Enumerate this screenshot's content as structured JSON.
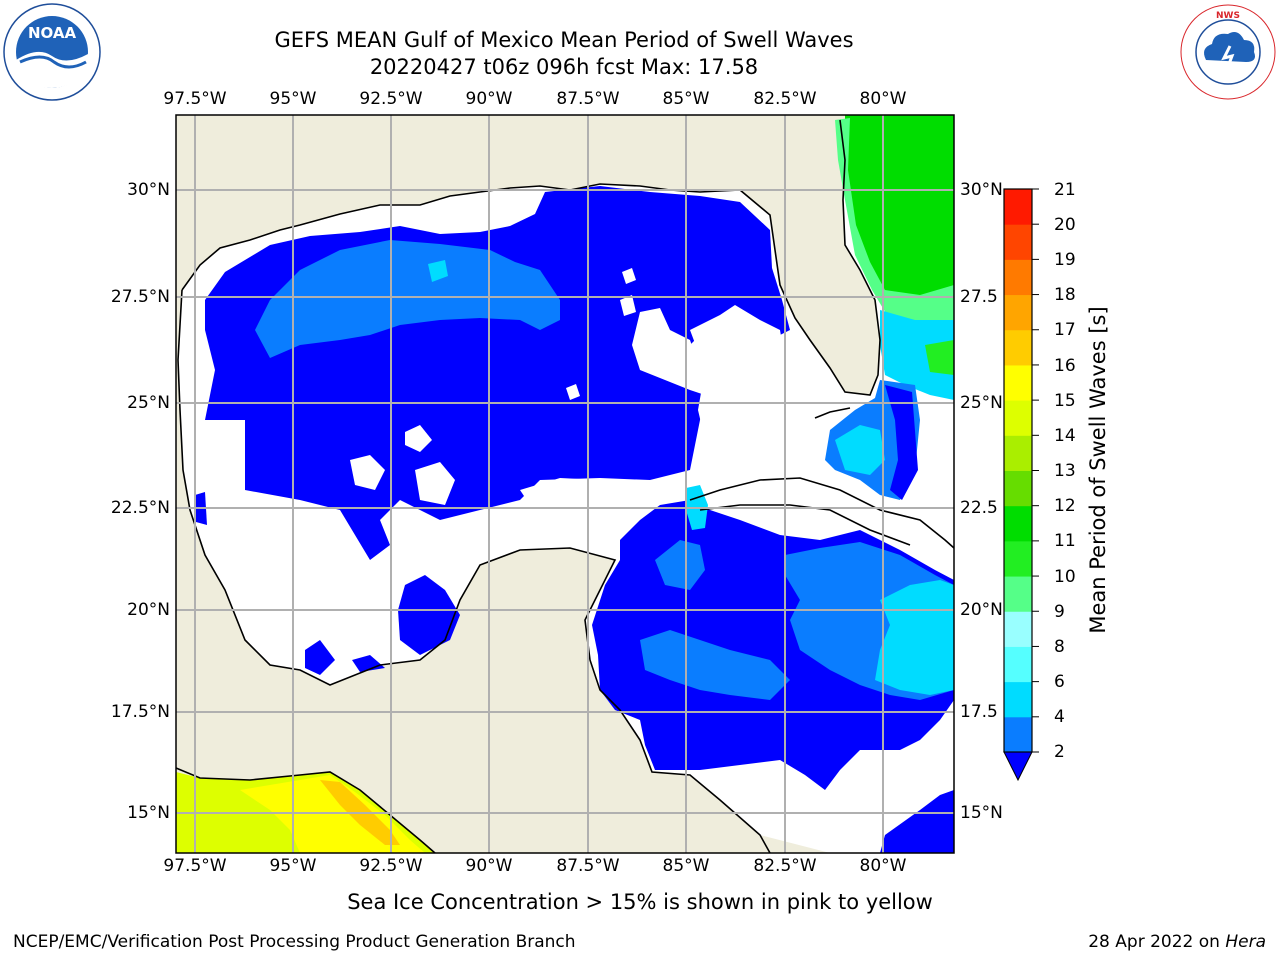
{
  "title": {
    "line1": "GEFS MEAN Gulf of Mexico Mean Period of Swell Waves",
    "line2": "20220427 t06z 096h fcst   Max: 17.58"
  },
  "logos": {
    "noara_text": "NOAA",
    "noaa_ring_text": "NATIONAL OCEANIC AND ATMOSPHERIC ADMINISTRATION · U.S. DEPARTMENT OF COMMERCE",
    "nws_ring_text": "NATIONAL WEATHER SERVICE"
  },
  "map": {
    "x_ticks_top": [
      "97.5°W",
      "95°W",
      "92.5°W",
      "90°W",
      "87.5°W",
      "85°W",
      "82.5°W",
      "80°W"
    ],
    "x_ticks_bottom": [
      "97.5°W",
      "95°W",
      "92.5°W",
      "90°W",
      "87.5°W",
      "85°W",
      "82.5°W",
      "80°W"
    ],
    "y_ticks_left": [
      "30°N",
      "27.5°N",
      "25°N",
      "22.5°N",
      "20°N",
      "17.5°N",
      "15°N"
    ],
    "y_ticks_right": [
      "30°N",
      "27.5",
      "25°N",
      "22.5",
      "20°N",
      "17.5",
      "15°N"
    ],
    "colors": {
      "land": "#efeddc",
      "ocean_missing": "#ffffff",
      "grid": "#b0b0b0"
    }
  },
  "colorbar": {
    "label": "Mean Period of Swell Waves [s]",
    "tick_labels": [
      "2",
      "4",
      "6",
      "8",
      "9",
      "10",
      "11",
      "12",
      "13",
      "14",
      "15",
      "16",
      "17",
      "18",
      "19",
      "20",
      "21"
    ],
    "colors": [
      "#0000ff",
      "#0a7dff",
      "#00dcff",
      "#55ffff",
      "#99ffff",
      "#55ff88",
      "#22ee22",
      "#00dd00",
      "#66dd00",
      "#aaee00",
      "#ddff00",
      "#ffff00",
      "#ffcc00",
      "#ffa500",
      "#ff7a00",
      "#ff4500",
      "#ff1a00",
      "#ff0000"
    ],
    "extend_color": "#0000ff"
  },
  "caption": "Sea Ice Concentration > 15% is shown in pink to yellow",
  "footer": {
    "left": "NCEP/EMC/Verification Post Processing Product Generation Branch",
    "right_prefix": "28 Apr 2022 on ",
    "right_host": "Hera"
  }
}
